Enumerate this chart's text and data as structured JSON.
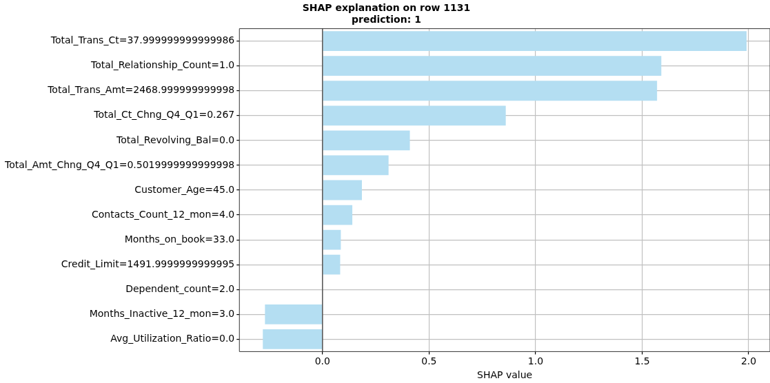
{
  "chart_data": {
    "type": "bar",
    "orientation": "horizontal",
    "title": "SHAP explanation on row 1131",
    "subtitle": "prediction: 1",
    "xlabel": "SHAP value",
    "categories": [
      "Total_Trans_Ct=37.999999999999986",
      "Total_Relationship_Count=1.0",
      "Total_Trans_Amt=2468.999999999998",
      "Total_Ct_Chng_Q4_Q1=0.267",
      "Total_Revolving_Bal=0.0",
      "Total_Amt_Chng_Q4_Q1=0.5019999999999998",
      "Customer_Age=45.0",
      "Contacts_Count_12_mon=4.0",
      "Months_on_book=33.0",
      "Credit_Limit=1491.9999999999995",
      "Dependent_count=2.0",
      "Months_Inactive_12_mon=3.0",
      "Avg_Utilization_Ratio=0.0"
    ],
    "values": [
      1.99,
      1.59,
      1.57,
      0.86,
      0.41,
      0.31,
      0.185,
      0.14,
      0.086,
      0.083,
      0,
      -0.27,
      -0.28
    ],
    "color": "#b4def2",
    "xlim": [
      -0.39,
      2.1
    ],
    "xticks": [
      {
        "value": 0,
        "label": "0.0"
      },
      {
        "value": 0.5,
        "label": "0.5"
      },
      {
        "value": 1,
        "label": "1.0"
      },
      {
        "value": 1.5,
        "label": "1.5"
      },
      {
        "value": 2,
        "label": "2.0"
      }
    ],
    "grid": true,
    "legend": false,
    "ref_lines": [
      {
        "axis": "x",
        "value": 0,
        "color": "#555555"
      }
    ]
  }
}
